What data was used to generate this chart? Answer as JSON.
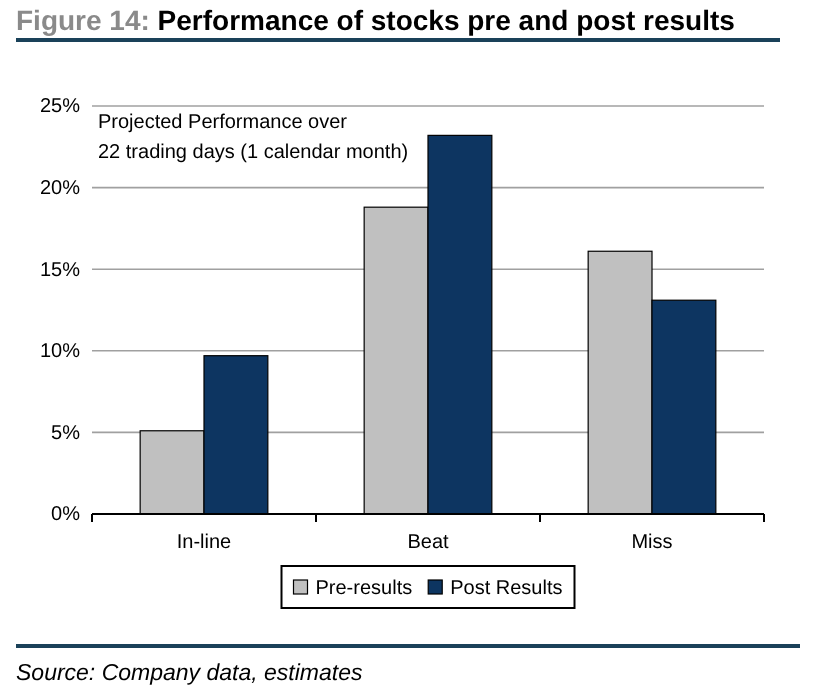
{
  "chart_data": {
    "type": "bar",
    "title": "Figure 14: Performance of stocks pre and post results",
    "categories": [
      "In-line",
      "Beat",
      "Miss"
    ],
    "series": [
      {
        "name": "Pre-results",
        "color": "#c0c0c0",
        "values": [
          5.1,
          18.8,
          16.1
        ]
      },
      {
        "name": "Post Results",
        "color": "#0d3561",
        "values": [
          9.7,
          23.2,
          13.1
        ]
      }
    ],
    "ylim": [
      0,
      25
    ],
    "yticks": [
      {
        "value": 0,
        "label": "0%"
      },
      {
        "value": 5,
        "label": "5%"
      },
      {
        "value": 10,
        "label": "10%"
      },
      {
        "value": 15,
        "label": "15%"
      },
      {
        "value": 20,
        "label": "20%"
      },
      {
        "value": 25,
        "label": "25%"
      }
    ],
    "grid": "y",
    "legend": "bottom",
    "annotations": [
      "Projected Performance over\n22 trading days (1 calendar month)",
      "Source: Company data, estimates"
    ]
  }
}
